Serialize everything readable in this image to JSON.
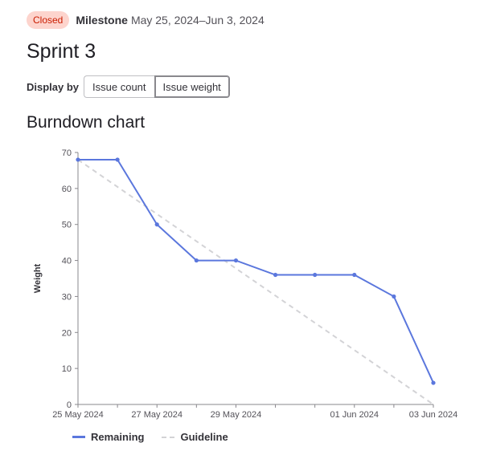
{
  "header": {
    "status_badge": "Closed",
    "milestone_label": "Milestone",
    "milestone_dates": "May 25, 2024–Jun 3, 2024"
  },
  "page_title": "Sprint 3",
  "display_by": {
    "label": "Display by",
    "options": [
      "Issue count",
      "Issue weight"
    ],
    "selected": "Issue weight"
  },
  "section_title": "Burndown chart",
  "colors": {
    "remaining": "#5b77dd",
    "guideline": "#d3d3d6",
    "badge_bg": "#fdd4cd",
    "badge_text": "#c91c00"
  },
  "chart_data": {
    "type": "line",
    "title": "",
    "xlabel": "",
    "ylabel": "Weight",
    "ylim": [
      0,
      70
    ],
    "yticks": [
      0,
      10,
      20,
      30,
      40,
      50,
      60,
      70
    ],
    "x": [
      "2024-05-25",
      "2024-05-26",
      "2024-05-27",
      "2024-05-28",
      "2024-05-29",
      "2024-05-30",
      "2024-05-31",
      "2024-06-01",
      "2024-06-02",
      "2024-06-03"
    ],
    "x_tick_labels": [
      {
        "date": "2024-05-25",
        "label": "25 May 2024"
      },
      {
        "date": "2024-05-27",
        "label": "27 May 2024"
      },
      {
        "date": "2024-05-29",
        "label": "29 May 2024"
      },
      {
        "date": "2024-06-01",
        "label": "01 Jun 2024"
      },
      {
        "date": "2024-06-03",
        "label": "03 Jun 2024"
      }
    ],
    "series": [
      {
        "name": "Remaining",
        "style": "solid",
        "values": [
          68,
          68,
          50,
          40,
          40,
          36,
          36,
          36,
          30,
          6
        ]
      },
      {
        "name": "Guideline",
        "style": "dashed",
        "values": [
          68,
          null,
          null,
          null,
          null,
          null,
          null,
          null,
          null,
          0
        ]
      }
    ],
    "legend_position": "bottom-left",
    "grid": false
  }
}
